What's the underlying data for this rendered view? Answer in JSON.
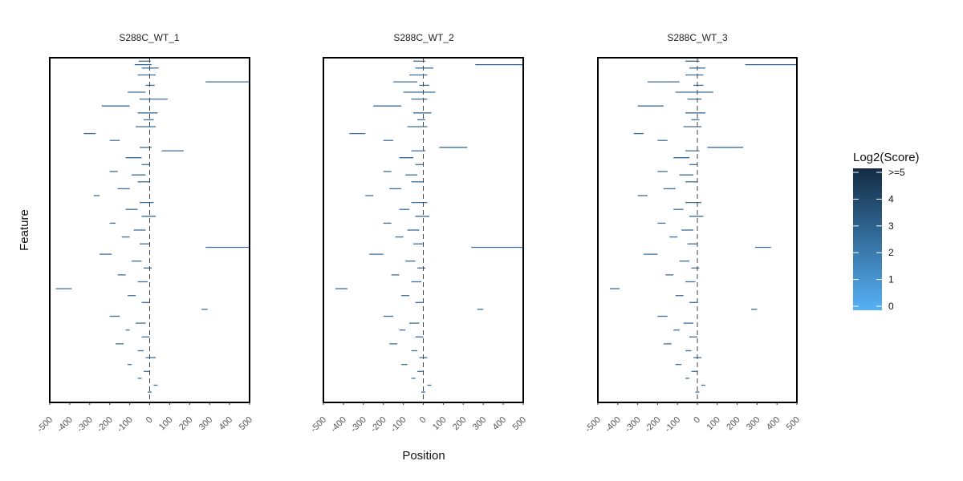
{
  "chart_data": {
    "type": "heatmap",
    "xlabel": "Position",
    "ylabel": "Feature",
    "xlim": [
      -500,
      500
    ],
    "x_ticks": [
      -500,
      -400,
      -300,
      -200,
      -100,
      0,
      100,
      200,
      300,
      400,
      500
    ],
    "x_tick_labels": [
      "-500",
      "-400",
      "-300",
      "-200",
      "-100",
      "0",
      "100",
      "200",
      "300",
      "400",
      "500"
    ],
    "reference_line_x": 0,
    "panels": [
      {
        "title": "S288C_WT_1",
        "segments": [
          [
            0.01,
            -55,
            5
          ],
          [
            0.02,
            -75,
            10
          ],
          [
            0.03,
            -40,
            45
          ],
          [
            0.05,
            -60,
            30
          ],
          [
            0.07,
            280,
            500
          ],
          [
            0.08,
            -20,
            25
          ],
          [
            0.1,
            -110,
            -20
          ],
          [
            0.12,
            -50,
            90
          ],
          [
            0.14,
            -240,
            -100
          ],
          [
            0.16,
            -60,
            40
          ],
          [
            0.18,
            -30,
            20
          ],
          [
            0.2,
            -70,
            30
          ],
          [
            0.22,
            -330,
            -270
          ],
          [
            0.24,
            -200,
            -150
          ],
          [
            0.26,
            -50,
            10
          ],
          [
            0.27,
            60,
            170
          ],
          [
            0.29,
            -120,
            -40
          ],
          [
            0.31,
            -40,
            0
          ],
          [
            0.33,
            -200,
            -160
          ],
          [
            0.34,
            -90,
            -20
          ],
          [
            0.36,
            -60,
            0
          ],
          [
            0.38,
            -160,
            -100
          ],
          [
            0.4,
            -280,
            -250
          ],
          [
            0.42,
            -50,
            20
          ],
          [
            0.44,
            -120,
            -60
          ],
          [
            0.46,
            -40,
            30
          ],
          [
            0.48,
            -200,
            -170
          ],
          [
            0.5,
            -80,
            -20
          ],
          [
            0.52,
            -140,
            -100
          ],
          [
            0.54,
            -50,
            0
          ],
          [
            0.55,
            280,
            500
          ],
          [
            0.57,
            -250,
            -190
          ],
          [
            0.59,
            -90,
            -40
          ],
          [
            0.61,
            -30,
            10
          ],
          [
            0.63,
            -160,
            -120
          ],
          [
            0.65,
            -60,
            -10
          ],
          [
            0.67,
            -470,
            -390
          ],
          [
            0.69,
            -110,
            -70
          ],
          [
            0.71,
            -40,
            0
          ],
          [
            0.73,
            260,
            290
          ],
          [
            0.75,
            -200,
            -150
          ],
          [
            0.77,
            -70,
            -20
          ],
          [
            0.79,
            -120,
            -100
          ],
          [
            0.81,
            -40,
            0
          ],
          [
            0.83,
            -170,
            -130
          ],
          [
            0.85,
            -60,
            -30
          ],
          [
            0.87,
            -20,
            30
          ],
          [
            0.89,
            -110,
            -90
          ],
          [
            0.91,
            -30,
            0
          ],
          [
            0.93,
            -60,
            -40
          ],
          [
            0.95,
            20,
            40
          ],
          [
            0.97,
            -10,
            10
          ]
        ]
      },
      {
        "title": "S288C_WT_2",
        "segments": [
          [
            0.01,
            -50,
            10
          ],
          [
            0.02,
            260,
            500
          ],
          [
            0.03,
            -40,
            50
          ],
          [
            0.05,
            -70,
            20
          ],
          [
            0.07,
            -150,
            -30
          ],
          [
            0.08,
            -20,
            30
          ],
          [
            0.1,
            -100,
            60
          ],
          [
            0.12,
            -60,
            20
          ],
          [
            0.14,
            -250,
            -110
          ],
          [
            0.16,
            -50,
            40
          ],
          [
            0.18,
            -30,
            10
          ],
          [
            0.2,
            -80,
            20
          ],
          [
            0.22,
            -370,
            -290
          ],
          [
            0.24,
            -200,
            -150
          ],
          [
            0.26,
            80,
            220
          ],
          [
            0.27,
            -60,
            10
          ],
          [
            0.29,
            -120,
            -50
          ],
          [
            0.31,
            -40,
            0
          ],
          [
            0.33,
            -200,
            -160
          ],
          [
            0.34,
            -90,
            -30
          ],
          [
            0.36,
            -60,
            0
          ],
          [
            0.38,
            -170,
            -110
          ],
          [
            0.4,
            -290,
            -250
          ],
          [
            0.42,
            -60,
            20
          ],
          [
            0.44,
            -120,
            -70
          ],
          [
            0.46,
            -40,
            30
          ],
          [
            0.48,
            -200,
            -160
          ],
          [
            0.5,
            -80,
            -20
          ],
          [
            0.52,
            -140,
            -100
          ],
          [
            0.54,
            -50,
            0
          ],
          [
            0.55,
            240,
            500
          ],
          [
            0.57,
            -270,
            -200
          ],
          [
            0.59,
            -90,
            -40
          ],
          [
            0.61,
            -30,
            10
          ],
          [
            0.63,
            -160,
            -120
          ],
          [
            0.65,
            -60,
            -10
          ],
          [
            0.67,
            -440,
            -380
          ],
          [
            0.69,
            -110,
            -70
          ],
          [
            0.71,
            -40,
            0
          ],
          [
            0.73,
            270,
            300
          ],
          [
            0.75,
            -200,
            -150
          ],
          [
            0.77,
            -70,
            -20
          ],
          [
            0.79,
            -120,
            -90
          ],
          [
            0.81,
            -40,
            0
          ],
          [
            0.83,
            -170,
            -130
          ],
          [
            0.85,
            -60,
            -30
          ],
          [
            0.87,
            -20,
            20
          ],
          [
            0.89,
            -110,
            -80
          ],
          [
            0.91,
            -30,
            0
          ],
          [
            0.93,
            -60,
            -40
          ],
          [
            0.95,
            20,
            40
          ],
          [
            0.97,
            -10,
            10
          ]
        ]
      },
      {
        "title": "S288C_WT_3",
        "segments": [
          [
            0.01,
            -60,
            10
          ],
          [
            0.02,
            240,
            500
          ],
          [
            0.03,
            -40,
            40
          ],
          [
            0.05,
            -60,
            30
          ],
          [
            0.07,
            -250,
            -90
          ],
          [
            0.08,
            -20,
            30
          ],
          [
            0.1,
            -110,
            80
          ],
          [
            0.12,
            -50,
            20
          ],
          [
            0.14,
            -300,
            -170
          ],
          [
            0.16,
            -60,
            40
          ],
          [
            0.18,
            -30,
            10
          ],
          [
            0.2,
            -70,
            20
          ],
          [
            0.22,
            -320,
            -270
          ],
          [
            0.24,
            -200,
            -150
          ],
          [
            0.26,
            50,
            230
          ],
          [
            0.27,
            -60,
            10
          ],
          [
            0.29,
            -120,
            -40
          ],
          [
            0.31,
            -40,
            0
          ],
          [
            0.33,
            -200,
            -150
          ],
          [
            0.34,
            -90,
            -20
          ],
          [
            0.36,
            -60,
            0
          ],
          [
            0.38,
            -170,
            -110
          ],
          [
            0.4,
            -300,
            -250
          ],
          [
            0.42,
            -60,
            20
          ],
          [
            0.44,
            -120,
            -70
          ],
          [
            0.46,
            -40,
            30
          ],
          [
            0.48,
            -200,
            -160
          ],
          [
            0.5,
            -80,
            -20
          ],
          [
            0.52,
            -140,
            -100
          ],
          [
            0.54,
            -50,
            0
          ],
          [
            0.55,
            290,
            370
          ],
          [
            0.57,
            -270,
            -200
          ],
          [
            0.59,
            -90,
            -40
          ],
          [
            0.61,
            -30,
            10
          ],
          [
            0.63,
            -160,
            -120
          ],
          [
            0.65,
            -60,
            -10
          ],
          [
            0.67,
            -440,
            -390
          ],
          [
            0.69,
            -110,
            -70
          ],
          [
            0.71,
            -40,
            0
          ],
          [
            0.73,
            270,
            300
          ],
          [
            0.75,
            -200,
            -150
          ],
          [
            0.77,
            -70,
            -20
          ],
          [
            0.79,
            -120,
            -90
          ],
          [
            0.81,
            -40,
            0
          ],
          [
            0.83,
            -170,
            -130
          ],
          [
            0.85,
            -60,
            -30
          ],
          [
            0.87,
            -20,
            20
          ],
          [
            0.89,
            -110,
            -80
          ],
          [
            0.91,
            -30,
            0
          ],
          [
            0.93,
            -60,
            -40
          ],
          [
            0.95,
            20,
            40
          ],
          [
            0.97,
            -10,
            10
          ]
        ]
      }
    ],
    "legend": {
      "title": "Log2(Score)",
      "labels": [
        ">=5",
        "4",
        "3",
        "2",
        "1",
        "0"
      ],
      "values": [
        5,
        4,
        3,
        2,
        1,
        0
      ],
      "color_low": "#56B1F7",
      "color_high": "#132B43",
      "placement": "right"
    },
    "segment_color": "#3A6E9E",
    "grid": false
  }
}
